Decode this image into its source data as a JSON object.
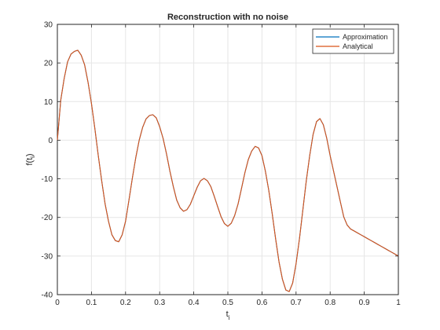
{
  "chart_data": {
    "type": "line",
    "title": "Reconstruction with no noise",
    "xlabel": "t",
    "xlabel_sub": "i",
    "ylabel": "f(t",
    "ylabel_sub": "i",
    "ylabel_close": ")",
    "xlim": [
      0,
      1
    ],
    "ylim": [
      -40,
      30
    ],
    "xticks": [
      0,
      0.1,
      0.2,
      0.3,
      0.4,
      0.5,
      0.6,
      0.7,
      0.8,
      0.9,
      1
    ],
    "xtick_labels": [
      "0",
      "0.1",
      "0.2",
      "0.3",
      "0.4",
      "0.5",
      "0.6",
      "0.7",
      "0.8",
      "0.9",
      "1"
    ],
    "yticks": [
      -40,
      -30,
      -20,
      -10,
      0,
      10,
      20,
      30
    ],
    "yticks_labels": [
      "-40",
      "-30",
      "-20",
      "-10",
      "0",
      "10",
      "20",
      "30"
    ],
    "grid": true,
    "legend_position": "top-right",
    "x": [
      0,
      0.01,
      0.02,
      0.03,
      0.04,
      0.05,
      0.06,
      0.07,
      0.08,
      0.09,
      0.1,
      0.11,
      0.12,
      0.13,
      0.14,
      0.15,
      0.16,
      0.17,
      0.18,
      0.19,
      0.2,
      0.21,
      0.22,
      0.23,
      0.24,
      0.25,
      0.26,
      0.27,
      0.28,
      0.29,
      0.3,
      0.31,
      0.32,
      0.33,
      0.34,
      0.35,
      0.36,
      0.37,
      0.38,
      0.39,
      0.4,
      0.41,
      0.42,
      0.43,
      0.44,
      0.45,
      0.46,
      0.47,
      0.48,
      0.49,
      0.5,
      0.51,
      0.52,
      0.53,
      0.54,
      0.55,
      0.56,
      0.57,
      0.58,
      0.59,
      0.6,
      0.61,
      0.62,
      0.63,
      0.64,
      0.65,
      0.66,
      0.67,
      0.68,
      0.69,
      0.7,
      0.71,
      0.72,
      0.73,
      0.74,
      0.75,
      0.76,
      0.77,
      0.78,
      0.79,
      0.8,
      0.81,
      0.82,
      0.83,
      0.84,
      0.85,
      0.86,
      0.87,
      0.88,
      0.89,
      0.9,
      0.91,
      0.92,
      0.93,
      0.94,
      0.95,
      0.96,
      0.97,
      0.98,
      0.99,
      1
    ],
    "series": [
      {
        "name": "Approximation",
        "color": "#0072BD",
        "values": [
          0,
          10.4,
          16.0,
          20.3,
          22.3,
          23.0,
          23.3,
          22.0,
          19.5,
          15.0,
          9.5,
          3.0,
          -4.0,
          -10.5,
          -16.5,
          -21.0,
          -24.5,
          -26.0,
          -26.3,
          -24.5,
          -21.0,
          -15.5,
          -9.8,
          -4.5,
          0,
          3.3,
          5.5,
          6.4,
          6.6,
          5.8,
          3.5,
          0.5,
          -3.5,
          -8.0,
          -12.0,
          -15.5,
          -17.5,
          -18.4,
          -18.0,
          -16.6,
          -14.4,
          -12.2,
          -10.5,
          -9.9,
          -10.5,
          -12.0,
          -14.5,
          -17.2,
          -19.8,
          -21.6,
          -22.3,
          -21.5,
          -19.5,
          -16.5,
          -12.5,
          -8.4,
          -5.0,
          -2.8,
          -1.6,
          -2.0,
          -4.0,
          -8.0,
          -13.0,
          -19.0,
          -25.5,
          -31.5,
          -36.0,
          -38.8,
          -39.2,
          -37.0,
          -32.0,
          -25.5,
          -18.0,
          -10.5,
          -4.0,
          1.5,
          4.8,
          5.6,
          4.0,
          0.5,
          -4.0,
          -8.0,
          -12.0,
          -16.0,
          -19.9,
          -22.0,
          -23.0,
          -23.5,
          -24.0,
          -24.5,
          -25.0,
          -25.5,
          -26.0,
          -26.5,
          -27.0,
          -27.5,
          -28.0,
          -28.5,
          -29.0,
          -29.5,
          -30.0
        ]
      },
      {
        "name": "Analytical",
        "color": "#D95319",
        "values": [
          0,
          10.4,
          16.0,
          20.3,
          22.3,
          23.0,
          23.3,
          22.0,
          19.5,
          15.0,
          9.5,
          3.0,
          -4.0,
          -10.5,
          -16.5,
          -21.0,
          -24.5,
          -26.0,
          -26.3,
          -24.5,
          -21.0,
          -15.5,
          -9.8,
          -4.5,
          0,
          3.3,
          5.5,
          6.4,
          6.6,
          5.8,
          3.5,
          0.5,
          -3.5,
          -8.0,
          -12.0,
          -15.5,
          -17.5,
          -18.4,
          -18.0,
          -16.6,
          -14.4,
          -12.2,
          -10.5,
          -9.9,
          -10.5,
          -12.0,
          -14.5,
          -17.2,
          -19.8,
          -21.6,
          -22.3,
          -21.5,
          -19.5,
          -16.5,
          -12.5,
          -8.4,
          -5.0,
          -2.8,
          -1.6,
          -2.0,
          -4.0,
          -8.0,
          -13.0,
          -19.0,
          -25.5,
          -31.5,
          -36.0,
          -38.8,
          -39.2,
          -37.0,
          -32.0,
          -25.5,
          -18.0,
          -10.5,
          -4.0,
          1.5,
          4.8,
          5.6,
          4.0,
          0.5,
          -4.0,
          -8.0,
          -12.0,
          -16.0,
          -19.9,
          -22.0,
          -23.0,
          -23.5,
          -24.0,
          -24.5,
          -25.0,
          -25.5,
          -26.0,
          -26.5,
          -27.0,
          -27.5,
          -28.0,
          -28.5,
          -29.0,
          -29.5,
          -30.0
        ]
      }
    ]
  }
}
